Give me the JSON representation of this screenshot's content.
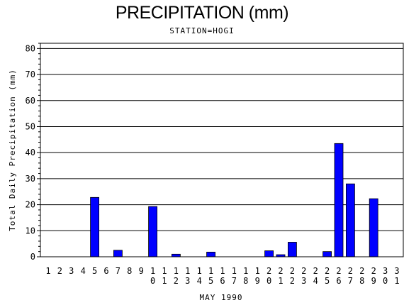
{
  "chart_data": {
    "type": "bar",
    "title": "PRECIPITATION (mm)",
    "subtitle": "STATION=HOGI",
    "xlabel": "MAY 1990",
    "ylabel": "Total Daily Precipitation (mm)",
    "ylim": [
      0,
      82
    ],
    "yticks": [
      0,
      10,
      20,
      30,
      40,
      50,
      60,
      70,
      80
    ],
    "grid": true,
    "bar_color": "#0000ff",
    "categories": [
      "1",
      "2",
      "3",
      "4",
      "5",
      "6",
      "7",
      "8",
      "9",
      "10",
      "11",
      "12",
      "13",
      "14",
      "15",
      "16",
      "17",
      "18",
      "19",
      "20",
      "21",
      "22",
      "23",
      "24",
      "25",
      "26",
      "27",
      "28",
      "29",
      "30",
      "31"
    ],
    "values": [
      0,
      0,
      0,
      0,
      22.8,
      0,
      2.5,
      0,
      0,
      19.3,
      0,
      1.0,
      0,
      0,
      1.8,
      0,
      0,
      0,
      0,
      2.3,
      0.8,
      5.6,
      0,
      0,
      2.0,
      43.5,
      28.0,
      0,
      22.3,
      0,
      0
    ]
  }
}
